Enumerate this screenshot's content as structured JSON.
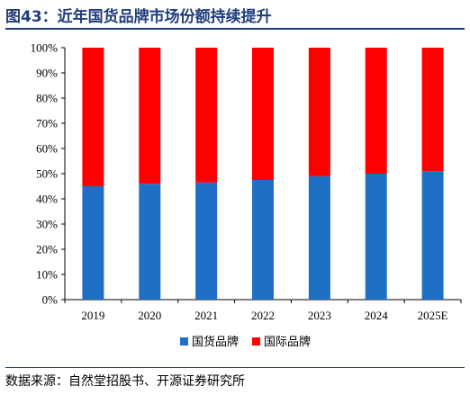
{
  "figure": {
    "title": "图43：近年国货品牌市场份额持续提升",
    "source": "数据来源：自然堂招股书、开源证券研究所"
  },
  "chart_data": {
    "type": "bar",
    "stacked": true,
    "categories": [
      "2019",
      "2020",
      "2021",
      "2022",
      "2023",
      "2024",
      "2025E"
    ],
    "series": [
      {
        "name": "国货品牌",
        "color": "#1f6fc5",
        "values": [
          45,
          46,
          46.5,
          47.5,
          49,
          50,
          51
        ]
      },
      {
        "name": "国际品牌",
        "color": "#ff0000",
        "values": [
          55,
          54,
          53.5,
          52.5,
          51,
          50,
          49
        ]
      }
    ],
    "ylim": [
      0,
      100
    ],
    "yticks": [
      "0%",
      "10%",
      "20%",
      "30%",
      "40%",
      "50%",
      "60%",
      "70%",
      "80%",
      "90%",
      "100%"
    ],
    "grid": false,
    "legend": "bottom-center",
    "xlabel": "",
    "ylabel": ""
  }
}
